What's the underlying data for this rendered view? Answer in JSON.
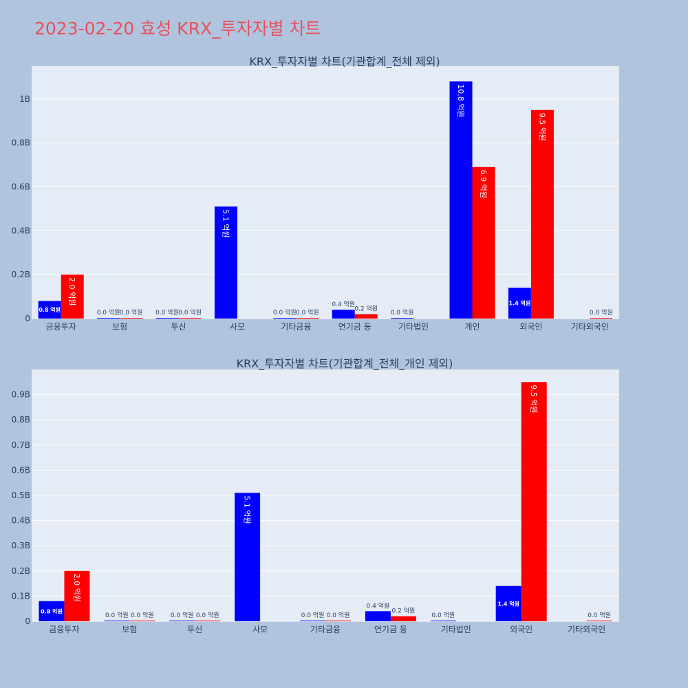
{
  "page_title": "2023-02-20 효성 KRX_투자자별 차트",
  "colors": {
    "buy": "#0000ff",
    "sell": "#ff0000",
    "plot_bg": "#e5ecf6",
    "page_bg": "#b0c4de",
    "title": "#e8505b"
  },
  "chart_data": [
    {
      "type": "bar",
      "title": "KRX_투자자별 차트(기관합계_전체 제외)",
      "categories": [
        "금융투자",
        "보험",
        "투신",
        "사모",
        "기타금융",
        "연기금 등",
        "기타법인",
        "개인",
        "외국인",
        "기타외국인"
      ],
      "series": [
        {
          "values": [
            80000000,
            0,
            0,
            510000000,
            0,
            40000000,
            0,
            1080000000,
            140000000,
            null
          ],
          "labels": [
            "0.8 억원",
            "0.0 억원",
            "0.0 억원",
            "5.1 억원",
            "0.0 억원",
            "0.4 억원",
            "0.0 억원",
            "10.8 억원",
            "1.4 억원",
            ""
          ]
        },
        {
          "values": [
            200000000,
            0,
            0,
            null,
            0,
            20000000,
            null,
            690000000,
            950000000,
            0
          ],
          "labels": [
            "2.0 억원",
            "0.0 억원",
            "0.0 억원",
            "",
            "0.0 억원",
            "0.2 억원",
            "",
            "6.9 억원",
            "9.5 억원",
            "0.0 억원"
          ]
        }
      ],
      "ylim": [
        0,
        1150000000
      ],
      "yticks": [
        0,
        200000000,
        400000000,
        600000000,
        800000000,
        1000000000
      ],
      "ytick_labels": [
        "0",
        "0.2B",
        "0.4B",
        "0.6B",
        "0.8B",
        "1B"
      ],
      "grid": true
    },
    {
      "type": "bar",
      "title": "KRX_투자자별 차트(기관합계_전체_개인 제외)",
      "categories": [
        "금융투자",
        "보험",
        "투신",
        "사모",
        "기타금융",
        "연기금 등",
        "기타법인",
        "외국인",
        "기타외국인"
      ],
      "series": [
        {
          "values": [
            80000000,
            0,
            0,
            510000000,
            0,
            40000000,
            0,
            140000000,
            null
          ],
          "labels": [
            "0.8 억원",
            "0.0 억원",
            "0.0 억원",
            "5.1 억원",
            "0.0 억원",
            "0.4 억원",
            "0.0 억원",
            "1.4 억원",
            ""
          ]
        },
        {
          "values": [
            200000000,
            0,
            0,
            null,
            0,
            20000000,
            null,
            950000000,
            0
          ],
          "labels": [
            "2.0 억원",
            "0.0 억원",
            "0.0 억원",
            "",
            "0.0 억원",
            "0.2 억원",
            "",
            "9.5 억원",
            "0.0 억원"
          ]
        }
      ],
      "ylim": [
        0,
        1000000000
      ],
      "yticks": [
        0,
        100000000,
        200000000,
        300000000,
        400000000,
        500000000,
        600000000,
        700000000,
        800000000,
        900000000
      ],
      "ytick_labels": [
        "0",
        "0.1B",
        "0.2B",
        "0.3B",
        "0.4B",
        "0.5B",
        "0.6B",
        "0.7B",
        "0.8B",
        "0.9B"
      ],
      "grid": true
    }
  ]
}
